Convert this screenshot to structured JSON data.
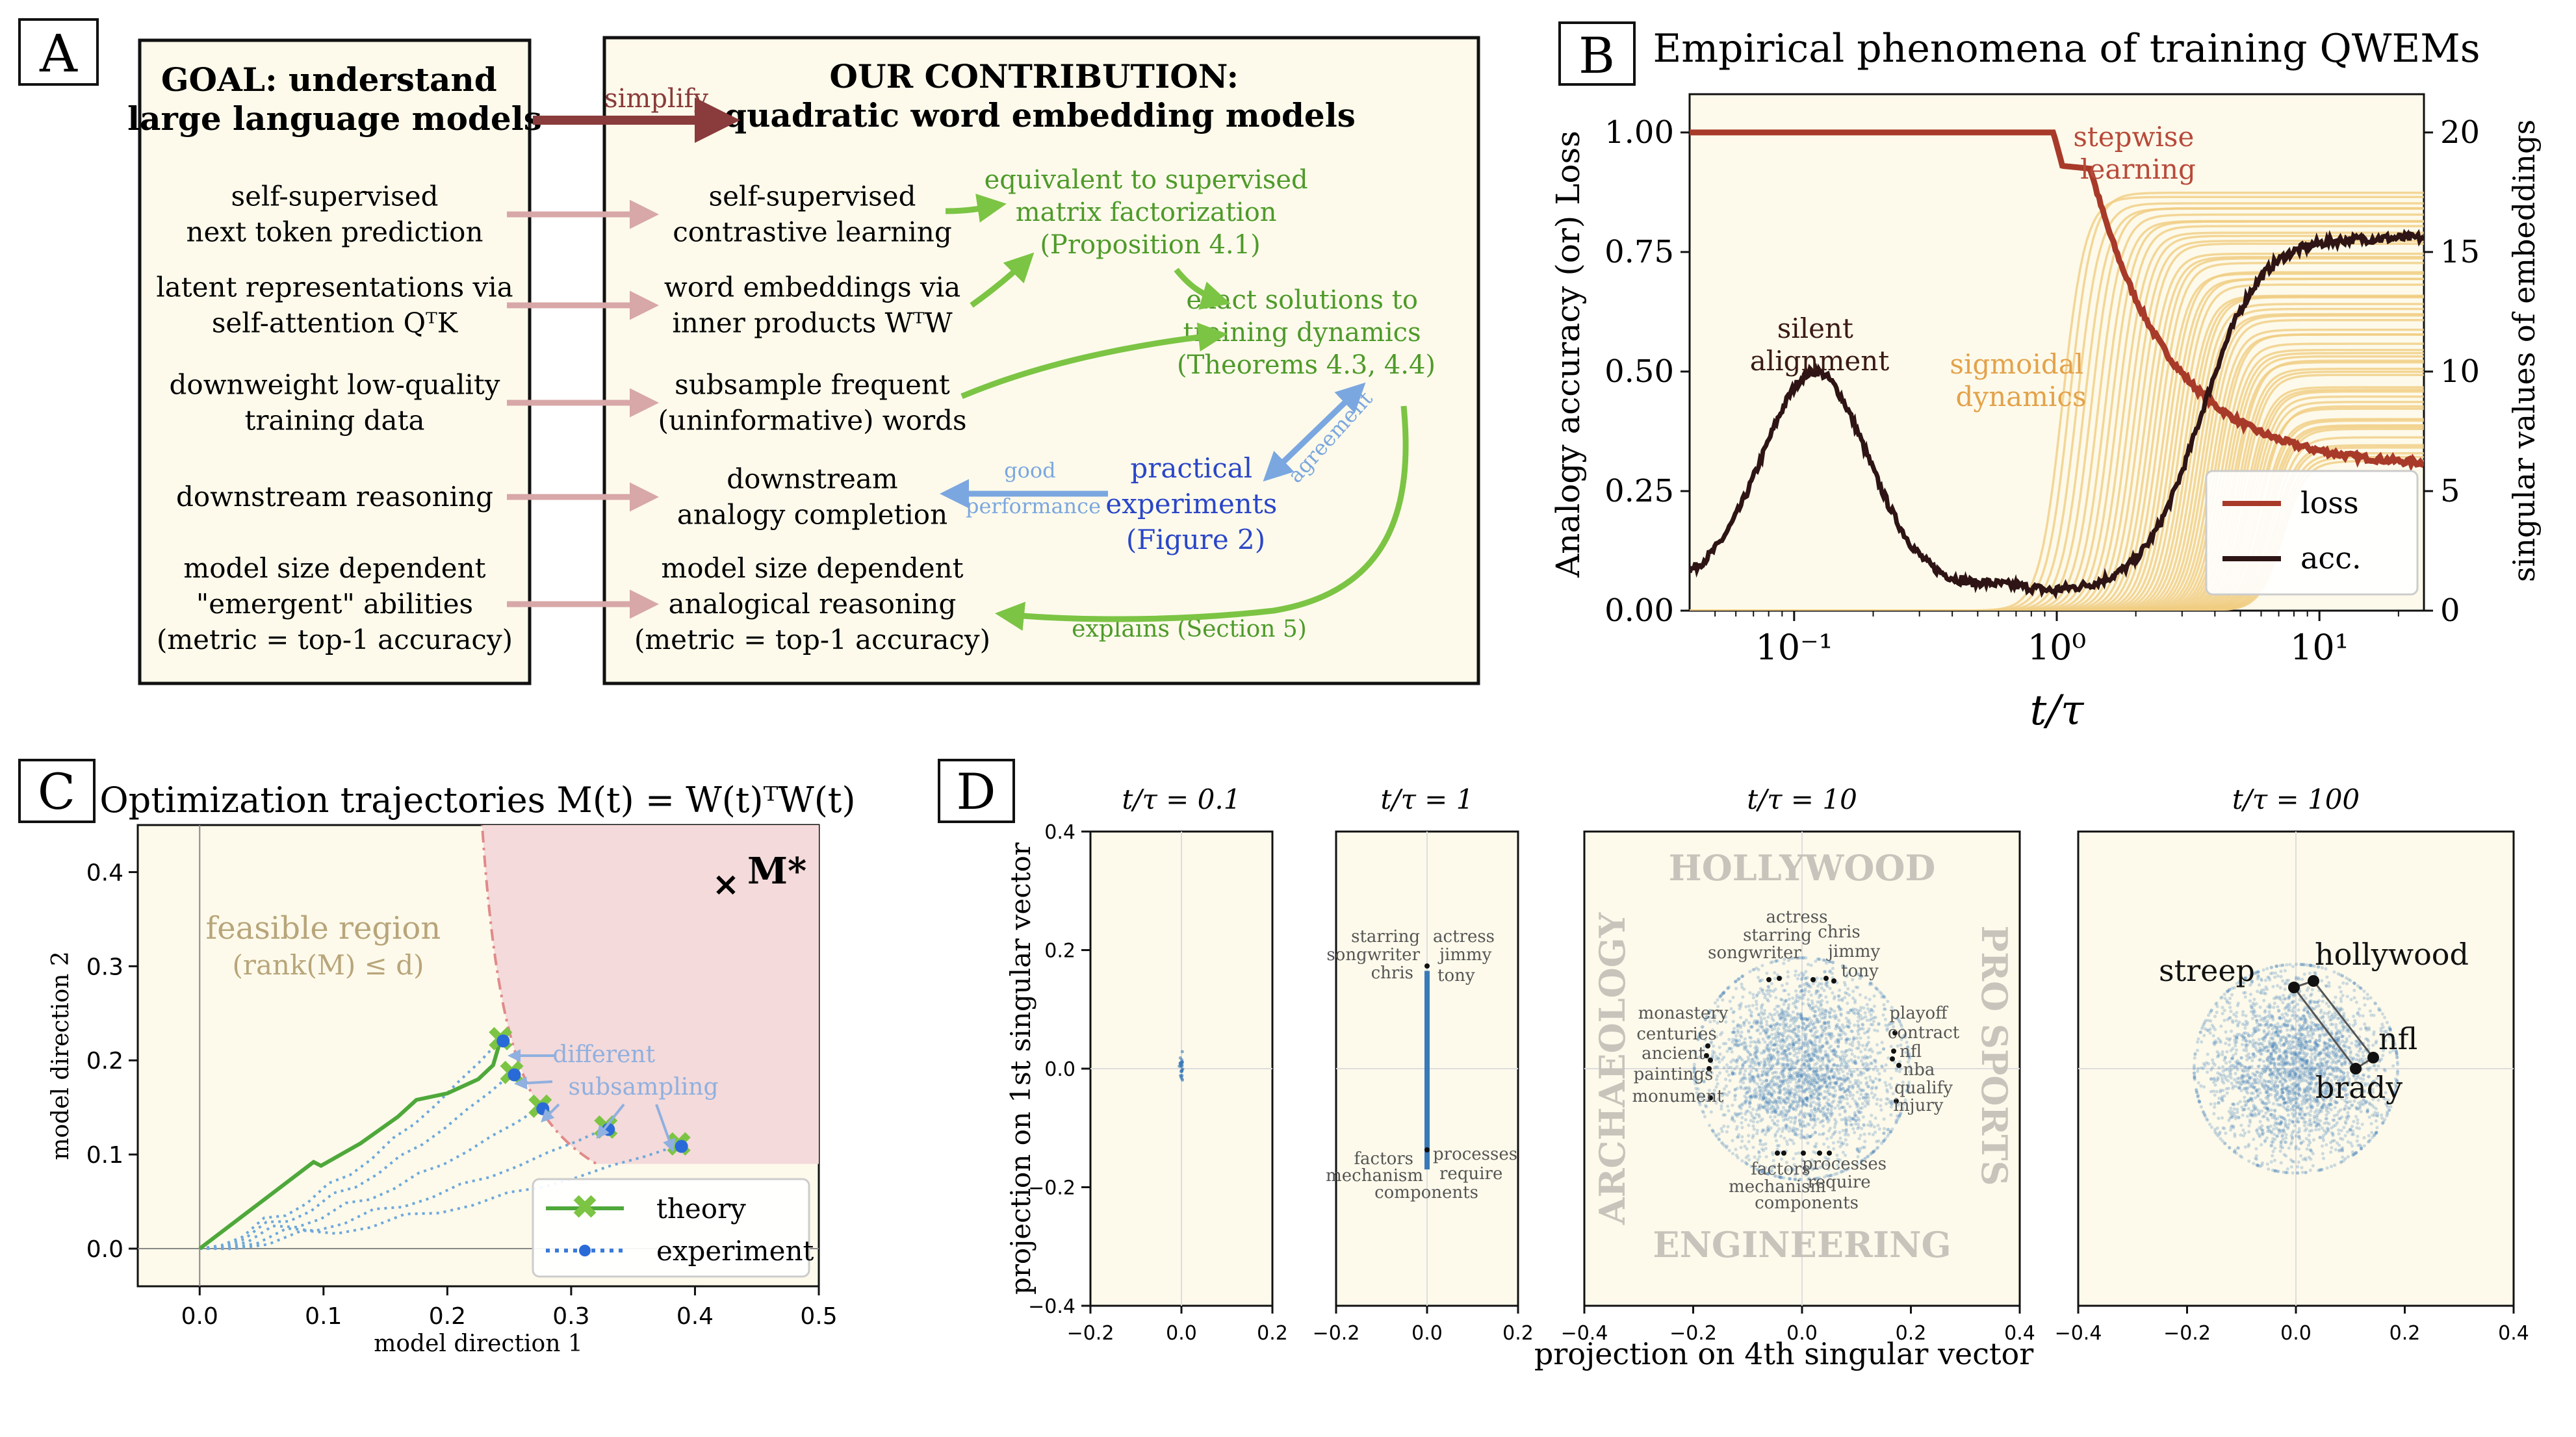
{
  "panel_a": {
    "tag": "A",
    "goal_title": [
      "GOAL: understand",
      "large language models"
    ],
    "contrib_title": [
      "OUR CONTRIBUTION:",
      "quadratic word embedding models"
    ],
    "simplify_label": "simplify",
    "left_items": [
      [
        "self-supervised",
        "next token prediction"
      ],
      [
        "latent representations via",
        "self-attention QᵀK"
      ],
      [
        "downweight low-quality",
        "training data"
      ],
      [
        "downstream reasoning"
      ],
      [
        "model size dependent",
        "\"emergent\" abilities",
        "(metric = top-1 accuracy)"
      ]
    ],
    "right_items": [
      [
        "self-supervised",
        "contrastive learning"
      ],
      [
        "word embeddings via",
        "inner products WᵀW"
      ],
      [
        "subsample frequent",
        "(uninformative) words"
      ],
      [
        "downstream",
        "analogy completion"
      ],
      [
        "model size dependent",
        "analogical reasoning",
        "(metric = top-1 accuracy)"
      ]
    ],
    "equivalent": [
      "equivalent to supervised",
      "matrix factorization",
      "(Proposition 4.1)"
    ],
    "exact": [
      "exact solutions to",
      "training dynamics",
      "(Theorems 4.3, 4.4)"
    ],
    "practical": [
      "practical",
      "experiments",
      "(Figure 2)"
    ],
    "good_performance": [
      "good",
      "performance"
    ],
    "agreement": "agreement",
    "explains": "explains (Section 5)",
    "colors": {
      "green": "#7cc444",
      "green_text": "#4e9a2a",
      "blue": "#7ba7e0",
      "blue_text": "#2a46c8",
      "pink": "#d8a7a7",
      "maroon": "#8a3b3b",
      "cream": "#fdfaeb"
    }
  },
  "panel_b": {
    "tag": "B",
    "title": "Empirical phenomena of training QWEMs",
    "ylabel_left": "Analogy accuracy (or) Loss",
    "ylabel_right": "singular values of embeddings",
    "xlabel": "t/τ",
    "yticks_left": [
      "0.00",
      "0.25",
      "0.50",
      "0.75",
      "1.00"
    ],
    "yticks_right": [
      "0",
      "5",
      "10",
      "15",
      "20"
    ],
    "xticks": [
      "10⁻¹",
      "10⁰",
      "10¹"
    ],
    "annotations": {
      "silent": [
        "silent",
        "alignment"
      ],
      "sigmoidal": [
        "sigmoidal",
        "dynamics"
      ],
      "stepwise": [
        "stepwise",
        "learning"
      ]
    },
    "legend": [
      "loss",
      "acc."
    ],
    "colors": {
      "loss": "#a83a2a",
      "acc": "#2e1414",
      "sv": "#f0cd82",
      "stepwise": "#b84a3a",
      "sigmoidal": "#e3a24a",
      "silent": "#3a1a14"
    }
  },
  "panel_c": {
    "tag": "C",
    "title": "Optimization trajectories M(t) = W(t)ᵀW(t)",
    "xlabel": "model direction 1",
    "ylabel": "model direction 2",
    "xticks": [
      "0.0",
      "0.1",
      "0.2",
      "0.3",
      "0.4",
      "0.5"
    ],
    "yticks": [
      "0.0",
      "0.1",
      "0.2",
      "0.3",
      "0.4"
    ],
    "feasible": [
      "feasible region",
      "(rank(M) ≤ d)"
    ],
    "mstar": "M*",
    "different": [
      "different",
      "subsampling"
    ],
    "legend": [
      "theory",
      "experiment"
    ],
    "colors": {
      "theory": "#4ea83a",
      "experiment": "#6ea8dc",
      "region": "#f4dada",
      "boundary": "#e08a8a",
      "feasible_text": "#b8a57a"
    }
  },
  "panel_d": {
    "tag": "D",
    "ylabel": "projection on 1st singular vector",
    "xlabel": "projection on 4th singular vector",
    "titles": [
      "t/τ = 0.1",
      "t/τ = 1",
      "t/τ = 10",
      "t/τ = 100"
    ],
    "yticks": [
      "0.4",
      "0.2",
      "0.0",
      "−0.2",
      "−0.4"
    ],
    "xticks_small": [
      "−0.2",
      "0.0",
      "0.2"
    ],
    "xticks_large": [
      "−0.4",
      "−0.2",
      "0.0",
      "0.2",
      "0.4"
    ],
    "p2_top_words": [
      "starring",
      "actress",
      "songwriter",
      "jimmy",
      "chris",
      "tony"
    ],
    "p2_bottom_words": [
      "factors",
      "processes",
      "mechanism",
      "require",
      "components"
    ],
    "p3_categories": [
      "HOLLYWOOD",
      "ENGINEERING",
      "ARCHAEOLOGY",
      "PRO SPORTS"
    ],
    "p3_top_words": [
      "actress",
      "starring",
      "chris",
      "songwriter",
      "jimmy",
      "tony"
    ],
    "p3_left_words": [
      "monastery",
      "centuries",
      "ancient",
      "paintings",
      "monument"
    ],
    "p3_right_words": [
      "playoff",
      "contract",
      "nfl",
      "nba",
      "qualify",
      "injury"
    ],
    "p3_bottom_words": [
      "factors",
      "processes",
      "mechanism",
      "require",
      "components"
    ],
    "p4_words": [
      "streep",
      "hollywood",
      "nfl",
      "brady"
    ],
    "colors": {
      "scatter": "#3a7ab8",
      "category": "#c8c4bc"
    }
  }
}
